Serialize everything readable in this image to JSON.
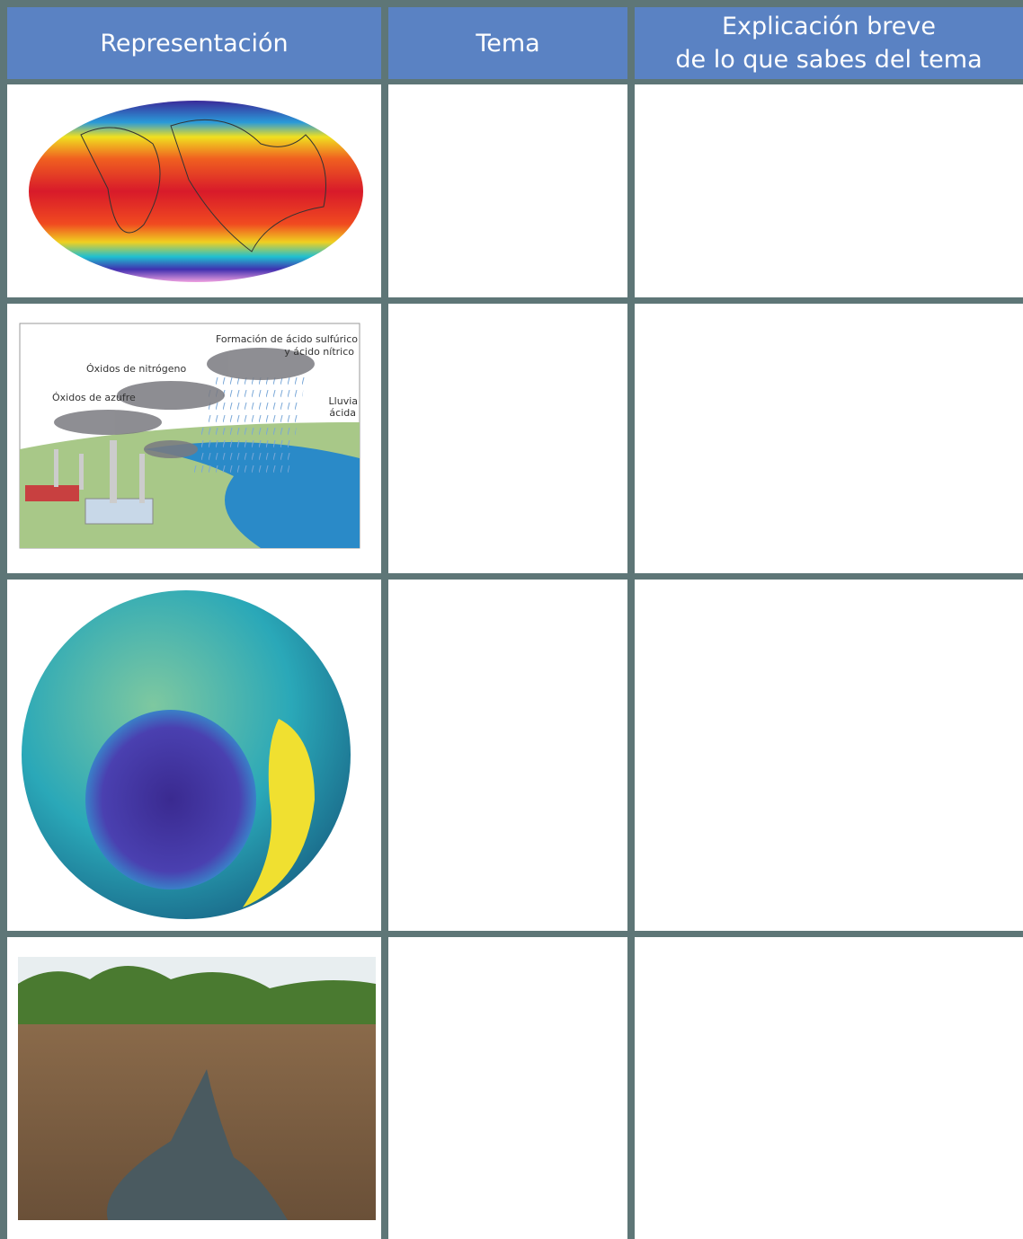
{
  "table": {
    "header": [
      [
        "Representación"
      ],
      [
        "Tema"
      ],
      [
        "Explicación breve",
        "de lo que sabes del tema"
      ]
    ]
  },
  "acid_rain_diagram": {
    "labels": [
      [
        "Formación de ácido sulfúrico",
        "y ácido nítrico"
      ],
      [
        "Óxidos de nitrógeno"
      ],
      [
        "Óxidos de azufre"
      ],
      [
        "Lluvia",
        "ácida"
      ]
    ]
  }
}
